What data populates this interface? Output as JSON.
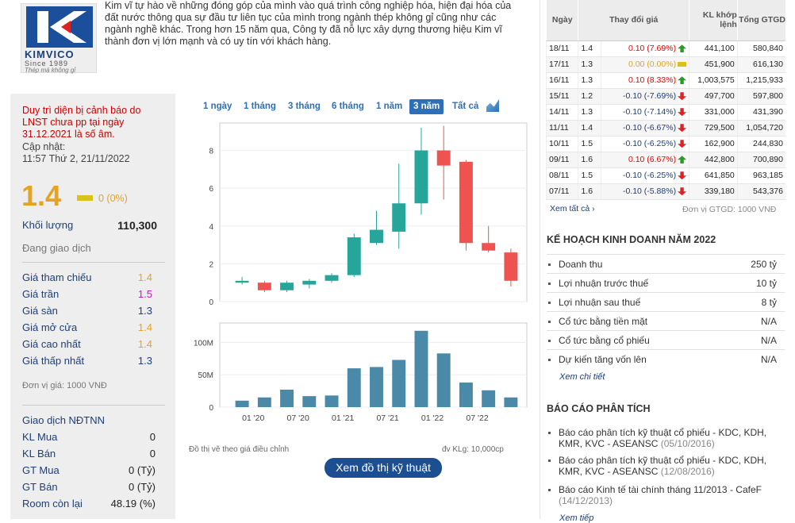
{
  "logo": {
    "brand": "KIMVICO",
    "since": "Since 1989",
    "slogan": "Thép mà không gỉ"
  },
  "intro": "Kim vĩ tự hào về những đóng góp của mình vào quá trình công nghiệp hóa, hiện đại hóa của đất nước thông qua sự đầu tư liên tục của mình trong ngành thép không gỉ cũng như các ngành nghề khác. Trong hơn 15 năm qua, Công ty đã nỗ lực xây dựng thương hiệu Kim vĩ thành đơn vị lớn mạnh và có uy tín với khách hàng.",
  "left": {
    "warning": "Duy trì diện bị cảnh báo do LNST chưa pp tại ngày 31.12.2021 là số âm.",
    "updated_label": "Cập nhật:",
    "updated_time": "11:57 Thứ 2, 21/11/2022",
    "price": "1.4",
    "change": "0 (0%)",
    "volume_label": "Khối lượng",
    "volume": "110,300",
    "status": "Đang giao dịch",
    "prices": [
      {
        "label": "Giá tham chiếu",
        "value": "1.4",
        "color": "#e4a421"
      },
      {
        "label": "Giá trần",
        "value": "1.5",
        "color": "#c020c0"
      },
      {
        "label": "Giá sàn",
        "value": "1.3",
        "color": "#1d3e78"
      },
      {
        "label": "Giá mở cửa",
        "value": "1.4",
        "color": "#e4a421"
      },
      {
        "label": "Giá cao nhất",
        "value": "1.4",
        "color": "#e4a421"
      },
      {
        "label": "Giá thấp nhất",
        "value": "1.3",
        "color": "#1d3e78"
      }
    ],
    "unit": "Đơn vị giá: 1000 VNĐ",
    "foreign_title": "Giao dịch NĐTNN",
    "foreign": [
      {
        "label": "KL Mua",
        "value": "0"
      },
      {
        "label": "KL Bán",
        "value": "0"
      },
      {
        "label": "GT Mua",
        "value": "0 (Tỷ)"
      },
      {
        "label": "GT Bán",
        "value": "0 (Tỷ)"
      },
      {
        "label": "Room còn lại",
        "value": "48.19 (%)"
      }
    ]
  },
  "chart_tabs": [
    "1 ngày",
    "1 tháng",
    "3 tháng",
    "6 tháng",
    "1 năm",
    "3 năm",
    "Tất cả"
  ],
  "chart_active_tab": "3 năm",
  "chart_data": {
    "type": "candlestick",
    "price_ticks": [
      "0",
      "2",
      "4",
      "6",
      "8"
    ],
    "volume_ticks": [
      "0",
      "50M",
      "100M"
    ],
    "x_tick_labels": [
      "01 '20",
      "07 '20",
      "01 '21",
      "07 '21",
      "01 '22",
      "07 '22"
    ],
    "ylim": [
      0,
      9.2
    ],
    "vol_lim": [
      0,
      130
    ],
    "candles": [
      {
        "o": 1.0,
        "c": 1.1,
        "h": 1.3,
        "l": 0.9,
        "v": 10
      },
      {
        "o": 1.0,
        "c": 0.6,
        "h": 1.1,
        "l": 0.5,
        "v": 15
      },
      {
        "o": 0.6,
        "c": 1.0,
        "h": 1.1,
        "l": 0.5,
        "v": 27
      },
      {
        "o": 0.9,
        "c": 1.1,
        "h": 1.2,
        "l": 0.7,
        "v": 17
      },
      {
        "o": 1.1,
        "c": 1.4,
        "h": 1.5,
        "l": 1.0,
        "v": 18
      },
      {
        "o": 1.4,
        "c": 3.4,
        "h": 3.6,
        "l": 1.3,
        "v": 60
      },
      {
        "o": 3.1,
        "c": 3.8,
        "h": 4.8,
        "l": 3.0,
        "v": 62
      },
      {
        "o": 3.7,
        "c": 5.2,
        "h": 7.3,
        "l": 2.8,
        "v": 73
      },
      {
        "o": 5.2,
        "c": 8.0,
        "h": 9.2,
        "l": 4.6,
        "v": 118
      },
      {
        "o": 8.0,
        "c": 7.2,
        "h": 9.3,
        "l": 5.4,
        "v": 83
      },
      {
        "o": 7.4,
        "c": 3.1,
        "h": 7.5,
        "l": 2.7,
        "v": 38
      },
      {
        "o": 3.1,
        "c": 2.7,
        "h": 4.0,
        "l": 2.6,
        "v": 26
      },
      {
        "o": 2.6,
        "c": 1.1,
        "h": 2.8,
        "l": 0.8,
        "v": 15
      }
    ],
    "colors": {
      "up": "#26a69a",
      "down": "#ef5350",
      "volume": "#4a8aa8"
    }
  },
  "chart_notes": {
    "left": "Đồ thị vẽ theo giá điều chỉnh",
    "right": "đv KLg: 10,000cp"
  },
  "tech_button": "Xem đồ thị kỹ thuật",
  "history": {
    "headers": [
      "Ngày",
      "Thay đổi giá",
      "KL khớp lệnh",
      "Tổng GTGD"
    ],
    "rows": [
      {
        "date": "18/11",
        "price": "1.4",
        "change": "0.10 (7.69%)",
        "dir": "up",
        "vol": "441,100",
        "val": "580,840"
      },
      {
        "date": "17/11",
        "price": "1.3",
        "change": "0.00 (0.00%)",
        "dir": "eq",
        "vol": "451,900",
        "val": "616,130"
      },
      {
        "date": "16/11",
        "price": "1.3",
        "change": "0.10 (8.33%)",
        "dir": "up",
        "vol": "1,003,575",
        "val": "1,215,933"
      },
      {
        "date": "15/11",
        "price": "1.2",
        "change": "-0.10 (-7.69%)",
        "dir": "dn",
        "vol": "497,700",
        "val": "597,800"
      },
      {
        "date": "14/11",
        "price": "1.3",
        "change": "-0.10 (-7.14%)",
        "dir": "dn",
        "vol": "331,000",
        "val": "431,390"
      },
      {
        "date": "11/11",
        "price": "1.4",
        "change": "-0.10 (-6.67%)",
        "dir": "dn",
        "vol": "729,500",
        "val": "1,054,720"
      },
      {
        "date": "10/11",
        "price": "1.5",
        "change": "-0.10 (-6.25%)",
        "dir": "dn",
        "vol": "162,900",
        "val": "244,830"
      },
      {
        "date": "09/11",
        "price": "1.6",
        "change": "0.10 (6.67%)",
        "dir": "up",
        "vol": "442,800",
        "val": "700,890"
      },
      {
        "date": "08/11",
        "price": "1.5",
        "change": "-0.10 (-6.25%)",
        "dir": "dn",
        "vol": "641,850",
        "val": "963,185"
      },
      {
        "date": "07/11",
        "price": "1.6",
        "change": "-0.10 (-5.88%)",
        "dir": "dn",
        "vol": "339,180",
        "val": "543,376"
      }
    ],
    "see_all": "Xem tất cả",
    "unit": "Đơn vị GTGD: 1000 VNĐ"
  },
  "plan": {
    "title": "KẾ HOẠCH KINH DOANH NĂM 2022",
    "rows": [
      {
        "label": "Doanh thu",
        "value": "250 tỷ"
      },
      {
        "label": "Lợi nhuận trước thuế",
        "value": "10 tỷ"
      },
      {
        "label": "Lợi nhuận sau thuế",
        "value": "8 tỷ"
      },
      {
        "label": "Cổ tức bằng tiền mặt",
        "value": "N/A"
      },
      {
        "label": "Cổ tức bằng cổ phiếu",
        "value": "N/A"
      },
      {
        "label": "Dự kiến tăng vốn lên",
        "value": "N/A"
      }
    ],
    "more": "Xem chi tiết"
  },
  "reports": {
    "title": "BÁO CÁO PHÂN TÍCH",
    "items": [
      {
        "text": "Báo cáo phân tích kỹ thuật cổ phiếu - KDC, KDH, KMR, KVC - ASEANSC",
        "date": "(05/10/2016)"
      },
      {
        "text": "Báo cáo phân tích kỹ thuật cổ phiếu - KDC, KDH, KMR, KVC - ASEANSC",
        "date": "(12/08/2016)"
      },
      {
        "text": "Báo cáo Kinh tế tài chính tháng 11/2013 - CafeF",
        "date": "(14/12/2013)"
      }
    ],
    "more": "Xem tiếp"
  }
}
